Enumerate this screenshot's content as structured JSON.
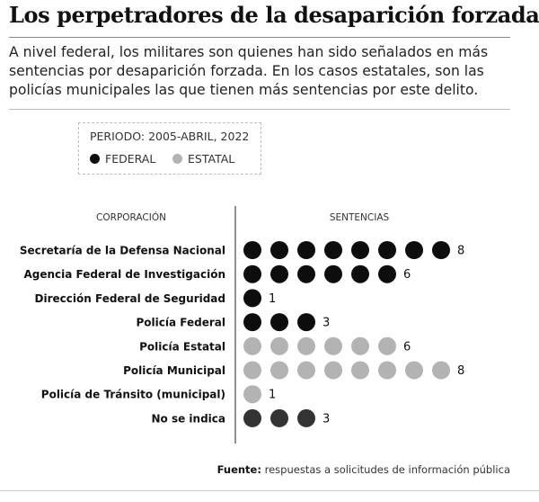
{
  "title": "Los perpetradores de la desaparición forzada",
  "subtitle": "A nivel federal, los militares son quienes han sido señalados en más sentencias por desaparición forzada. En los casos estatales, son las policías municipales las que tienen más sentencias por este delito.",
  "legend": {
    "period": "PERIODO: 2005-ABRIL, 2022",
    "federal": "FEDERAL",
    "estatal": "ESTATAL"
  },
  "colors": {
    "federal": "#0d0d0d",
    "estatal": "#b3b3b3",
    "no_indica": "#333333"
  },
  "chart_data": {
    "type": "dot",
    "column_headers": [
      "CORPORACIÓN",
      "SENTENCIAS"
    ],
    "rows": [
      {
        "label": "Secretaría de la Defensa Nacional",
        "value": 8,
        "group": "federal"
      },
      {
        "label": "Agencia Federal de Investigación",
        "value": 6,
        "group": "federal"
      },
      {
        "label": "Dirección Federal de Seguridad",
        "value": 1,
        "group": "federal"
      },
      {
        "label": "Policía Federal",
        "value": 3,
        "group": "federal"
      },
      {
        "label": "Policía Estatal",
        "value": 6,
        "group": "estatal"
      },
      {
        "label": "Policía Municipal",
        "value": 8,
        "group": "estatal"
      },
      {
        "label": "Policía de Tránsito (municipal)",
        "value": 1,
        "group": "estatal"
      },
      {
        "label": "No se indica",
        "value": 3,
        "group": "no_indica"
      }
    ]
  },
  "source": {
    "label": "Fuente:",
    "text": "respuestas a solicitudes de información pública"
  }
}
